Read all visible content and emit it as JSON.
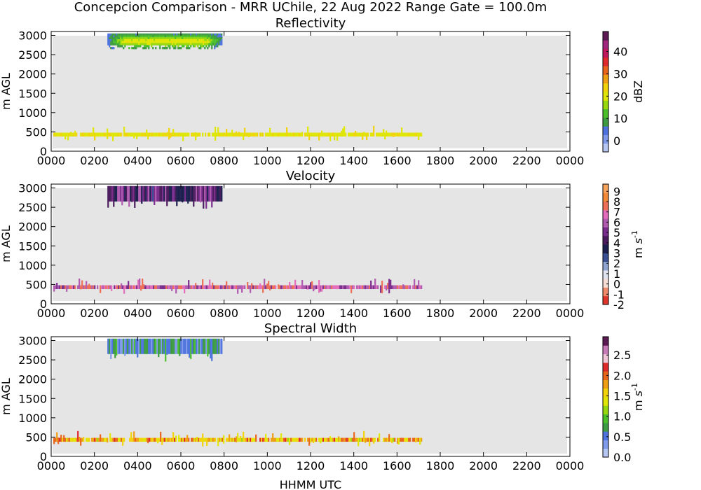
{
  "suptitle": "Concepcion Comparison - MRR UChile, 22 Aug 2022 Range Gate = 100.0m",
  "xlabel": "HHMM UTC",
  "ylabel": "m AGL",
  "x_ticks": [
    "0000",
    "0200",
    "0400",
    "0600",
    "0800",
    "1000",
    "1200",
    "1400",
    "1600",
    "1800",
    "2000",
    "2200",
    "0000"
  ],
  "y_ticks": [
    "0",
    "500",
    "1000",
    "1500",
    "2000",
    "2500",
    "3000"
  ],
  "panels": [
    {
      "title": "Reflectivity",
      "cbar_label": "dBZ",
      "cbar_ticks": [
        "0",
        "10",
        "20",
        "30",
        "40"
      ],
      "cbar_tick_values": [
        0,
        10,
        20,
        30,
        40
      ],
      "cbar_range": [
        -5,
        49
      ],
      "cbar_colors": [
        "#b7c7f3",
        "#7f9ae8",
        "#4e73de",
        "#3c9b43",
        "#4bc02b",
        "#97d80f",
        "#dfe605",
        "#f2d30a",
        "#ef9f12",
        "#e8651c",
        "#e0292a",
        "#c2185b",
        "#a0267e",
        "#5b1a53"
      ]
    },
    {
      "title": "Velocity",
      "cbar_label": "m s^-1",
      "cbar_ticks": [
        "-2",
        "-1",
        "0",
        "1",
        "2",
        "3",
        "4",
        "5",
        "6",
        "7",
        "8",
        "9"
      ],
      "cbar_tick_values": [
        -2,
        -1,
        0,
        1,
        2,
        3,
        4,
        5,
        6,
        7,
        8,
        9
      ],
      "cbar_range": [
        -2,
        9.7
      ],
      "cbar_colors": [
        "#e0362a",
        "#ef8b6a",
        "#f6dcd3",
        "#dfe4ef",
        "#8ea4cf",
        "#3a4f93",
        "#1b1f4e",
        "#4b1c5d",
        "#7b2d8e",
        "#b05ab0",
        "#e46dbb",
        "#ee6f57",
        "#f28a37",
        "#f7a45c"
      ]
    },
    {
      "title": "Spectral Width",
      "cbar_label": "m s^-1",
      "cbar_ticks": [
        "0.0",
        "0.5",
        "1.0",
        "1.5",
        "2.0",
        "2.5"
      ],
      "cbar_tick_values": [
        0,
        0.5,
        1.0,
        1.5,
        2.0,
        2.5
      ],
      "cbar_range": [
        0,
        2.95
      ],
      "cbar_colors": [
        "#b7c7f3",
        "#7f9ae8",
        "#4e73de",
        "#3c9b43",
        "#4bc02b",
        "#97d80f",
        "#dfe605",
        "#f2d30a",
        "#ef9f12",
        "#e8651c",
        "#e0292a",
        "#f0c6d6",
        "#c77ab8",
        "#5b1a53"
      ]
    }
  ],
  "chart_data": [
    {
      "type": "heatmap",
      "title": "Reflectivity",
      "x_unit": "HHMM UTC",
      "x_range_hours": [
        0,
        24
      ],
      "y_range": [
        0,
        3100
      ],
      "cbar_label": "dBZ",
      "features": [
        {
          "x_start_hours": 2.6,
          "x_end_hours": 7.9,
          "y_bottom": 2650,
          "y_top": 3050,
          "value_core": 22,
          "value_edge": 5
        },
        {
          "x_start_hours": 0.1,
          "x_end_hours": 17.1,
          "y_bottom": 380,
          "y_top": 480,
          "value": 21
        }
      ]
    },
    {
      "type": "heatmap",
      "title": "Velocity",
      "x_unit": "HHMM UTC",
      "x_range_hours": [
        0,
        24
      ],
      "y_range": [
        0,
        3100
      ],
      "cbar_label": "m s^-1",
      "features": [
        {
          "x_start_hours": 2.6,
          "x_end_hours": 7.9,
          "y_bottom": 2650,
          "y_top": 3050,
          "value": 4.5
        },
        {
          "x_start_hours": 0.1,
          "x_end_hours": 17.1,
          "y_bottom": 380,
          "y_top": 480,
          "value": 6.5
        }
      ]
    },
    {
      "type": "heatmap",
      "title": "Spectral Width",
      "x_unit": "HHMM UTC",
      "x_range_hours": [
        0,
        24
      ],
      "y_range": [
        0,
        3100
      ],
      "cbar_label": "m s^-1",
      "features": [
        {
          "x_start_hours": 2.6,
          "x_end_hours": 7.9,
          "y_bottom": 2650,
          "y_top": 3050,
          "value": 0.6
        },
        {
          "x_start_hours": 0.1,
          "x_end_hours": 17.1,
          "y_bottom": 380,
          "y_top": 480,
          "value": 1.7
        }
      ]
    }
  ]
}
